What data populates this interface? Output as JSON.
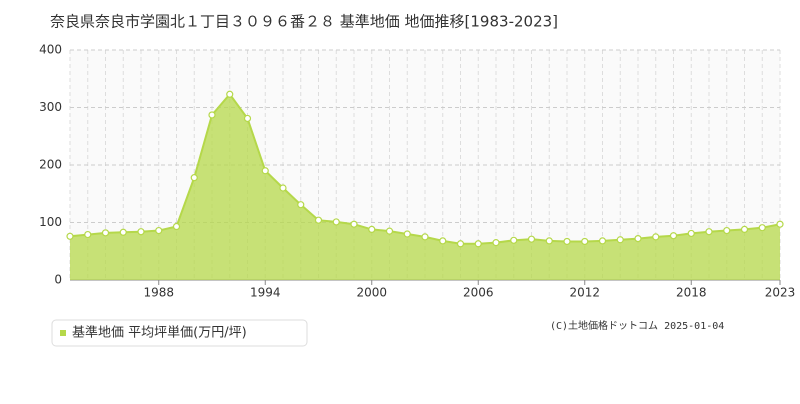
{
  "chart_data": {
    "type": "area",
    "title": "奈良県奈良市学園北１丁目３０９６番２８ 基準地価 地価推移[1983-2023]",
    "x": [
      1983,
      1984,
      1985,
      1986,
      1987,
      1988,
      1989,
      1990,
      1991,
      1992,
      1993,
      1994,
      1995,
      1996,
      1997,
      1998,
      1999,
      2000,
      2001,
      2002,
      2003,
      2004,
      2005,
      2006,
      2007,
      2008,
      2009,
      2010,
      2011,
      2012,
      2013,
      2014,
      2015,
      2016,
      2017,
      2018,
      2019,
      2020,
      2021,
      2022,
      2023
    ],
    "series": [
      {
        "name": "基準地価 平均坪単価(万円/坪)",
        "color": "#b5d84a",
        "values": [
          76,
          79,
          82,
          83,
          84,
          86,
          93,
          178,
          287,
          323,
          281,
          190,
          160,
          131,
          104,
          101,
          97,
          88,
          85,
          80,
          75,
          68,
          63,
          63,
          65,
          69,
          71,
          68,
          67,
          67,
          68,
          70,
          72,
          75,
          77,
          81,
          84,
          86,
          88,
          91,
          97
        ]
      }
    ],
    "xlim": [
      1983,
      2023
    ],
    "xticks": [
      1988,
      1994,
      2000,
      2006,
      2012,
      2018,
      2023
    ],
    "ylim": [
      0,
      400
    ],
    "yticks": [
      0,
      100,
      200,
      300,
      400
    ],
    "grid": true,
    "footer": "(C)土地価格ドットコム 2025-01-04"
  }
}
